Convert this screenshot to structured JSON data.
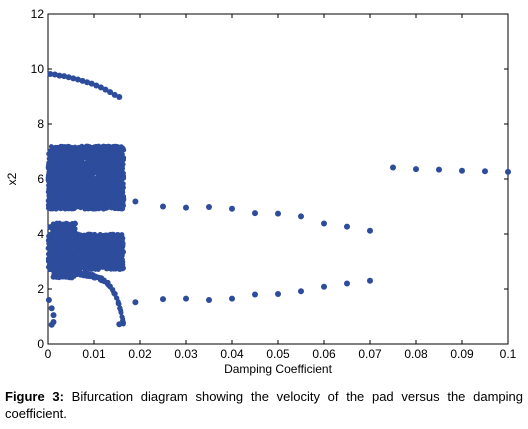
{
  "chart_data": {
    "type": "scatter",
    "title": "",
    "xlabel": "Damping Coefficient",
    "ylabel": "x2",
    "xlim": [
      0,
      0.1
    ],
    "ylim": [
      0,
      12
    ],
    "xticks": [
      0,
      0.01,
      0.02,
      0.03,
      0.04,
      0.05,
      0.06,
      0.07,
      0.08,
      0.09,
      0.1
    ],
    "xtick_labels": [
      "0",
      "0.01",
      "0.02",
      "0.03",
      "0.04",
      "0.05",
      "0.06",
      "0.07",
      "0.08",
      "0.09",
      "0.1"
    ],
    "yticks": [
      0,
      2,
      4,
      6,
      8,
      10,
      12
    ],
    "ytick_labels": [
      "0",
      "2",
      "4",
      "6",
      "8",
      "10",
      "12"
    ],
    "grid": false,
    "legend": "none",
    "marker_color": "#2e4c9c",
    "series": [
      {
        "points": [
          [
            0.0005,
            9.82
          ],
          [
            0.0015,
            9.8
          ],
          [
            0.0025,
            9.76
          ],
          [
            0.0035,
            9.74
          ],
          [
            0.0045,
            9.7
          ],
          [
            0.0055,
            9.66
          ],
          [
            0.0065,
            9.62
          ],
          [
            0.0075,
            9.57
          ],
          [
            0.0085,
            9.52
          ],
          [
            0.0095,
            9.47
          ],
          [
            0.0105,
            9.4
          ],
          [
            0.0115,
            9.33
          ],
          [
            0.0125,
            9.25
          ],
          [
            0.0135,
            9.16
          ],
          [
            0.0145,
            9.06
          ],
          [
            0.0155,
            8.98
          ],
          [
            0.019,
            5.18
          ],
          [
            0.025,
            5.0
          ],
          [
            0.03,
            4.96
          ],
          [
            0.035,
            4.98
          ],
          [
            0.04,
            4.92
          ],
          [
            0.045,
            4.76
          ],
          [
            0.05,
            4.74
          ],
          [
            0.055,
            4.64
          ],
          [
            0.06,
            4.38
          ],
          [
            0.065,
            4.27
          ],
          [
            0.07,
            4.12
          ],
          [
            0.019,
            1.52
          ],
          [
            0.025,
            1.63
          ],
          [
            0.03,
            1.65
          ],
          [
            0.035,
            1.6
          ],
          [
            0.04,
            1.65
          ],
          [
            0.045,
            1.8
          ],
          [
            0.05,
            1.82
          ],
          [
            0.055,
            1.92
          ],
          [
            0.06,
            2.08
          ],
          [
            0.065,
            2.2
          ],
          [
            0.07,
            2.3
          ],
          [
            0.075,
            6.42
          ],
          [
            0.08,
            6.36
          ],
          [
            0.085,
            6.34
          ],
          [
            0.09,
            6.3
          ],
          [
            0.095,
            6.28
          ],
          [
            0.1,
            6.26
          ],
          [
            0.0002,
            1.6
          ],
          [
            0.0008,
            1.3
          ],
          [
            0.0012,
            1.05
          ],
          [
            0.0012,
            0.8
          ],
          [
            0.0008,
            0.7
          ],
          [
            0.0005,
            4.25
          ],
          [
            0.0005,
            3.95
          ],
          [
            0.0009,
            3.7
          ],
          [
            0.0162,
            3.65
          ],
          [
            0.0162,
            2.75
          ],
          [
            0.0155,
            0.72
          ]
        ]
      }
    ],
    "dense_bands": [
      {
        "x_range": [
          0,
          0.0165
        ],
        "y_range": [
          4.9,
          7.2
        ]
      },
      {
        "x_range": [
          0,
          0.0165
        ],
        "y_range": [
          2.7,
          4.0
        ]
      },
      {
        "x_range": [
          0.001,
          0.006
        ],
        "y_range": [
          2.4,
          4.4
        ]
      }
    ]
  },
  "caption": {
    "label": "Figure 3:",
    "text": " Bifurcation diagram showing the velocity of the pad versus the damping coefficient."
  }
}
